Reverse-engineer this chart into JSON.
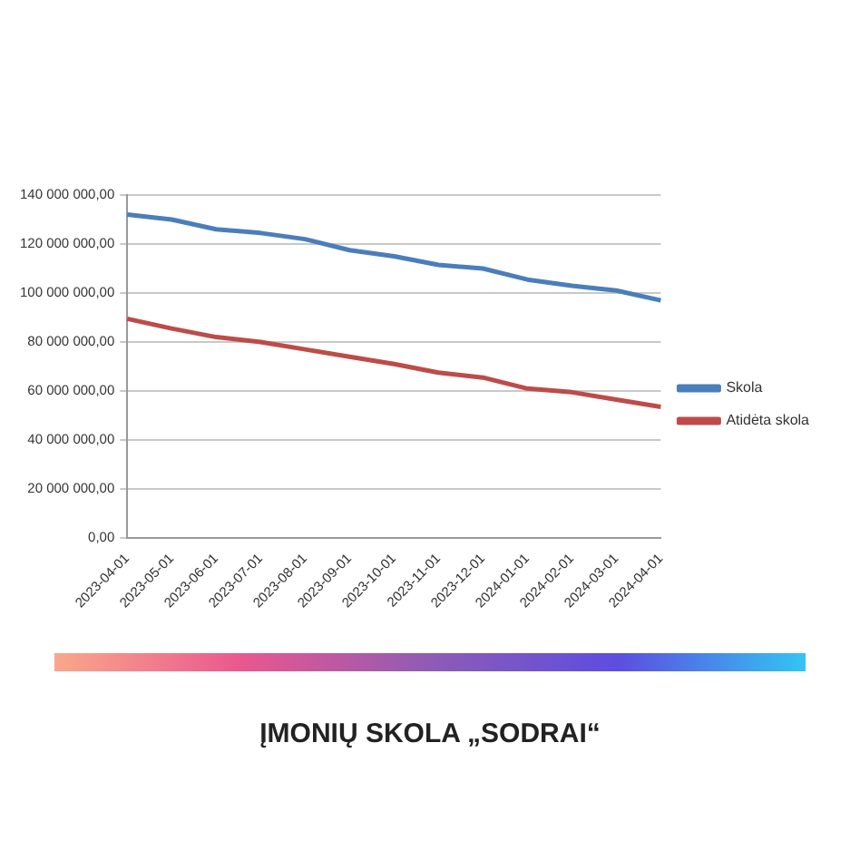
{
  "chart_data": {
    "type": "line",
    "title": "ĮMONIŲ SKOLA „SODRAI“",
    "categories": [
      "2023-04-01",
      "2023-05-01",
      "2023-06-01",
      "2023-07-01",
      "2023-08-01",
      "2023-09-01",
      "2023-10-01",
      "2023-11-01",
      "2023-12-01",
      "2024-01-01",
      "2024-02-01",
      "2024-03-01",
      "2024-04-01"
    ],
    "series": [
      {
        "name": "Skola",
        "color": "#4a7ebb",
        "values": [
          132000000,
          130000000,
          126000000,
          124500000,
          122000000,
          117500000,
          115000000,
          111500000,
          110000000,
          105500000,
          103000000,
          101000000,
          97000000
        ]
      },
      {
        "name": "Atidėta skola",
        "color": "#be4b48",
        "values": [
          89500000,
          85500000,
          82000000,
          80000000,
          77000000,
          74000000,
          71000000,
          67500000,
          65500000,
          61000000,
          59500000,
          56500000,
          53500000
        ]
      }
    ],
    "ylim": [
      0,
      140000000
    ],
    "yticks": [
      {
        "value": 0,
        "label": "0,00"
      },
      {
        "value": 20000000,
        "label": "20 000 000,00"
      },
      {
        "value": 40000000,
        "label": "40 000 000,00"
      },
      {
        "value": 60000000,
        "label": "60 000 000,00"
      },
      {
        "value": 80000000,
        "label": "80 000 000,00"
      },
      {
        "value": 100000000,
        "label": "100 000 000,00"
      },
      {
        "value": 120000000,
        "label": "120 000 000,00"
      },
      {
        "value": 140000000,
        "label": "140 000 000,00"
      }
    ],
    "grid": "y",
    "legend": "right",
    "marker": "none",
    "line_style": "solid"
  }
}
